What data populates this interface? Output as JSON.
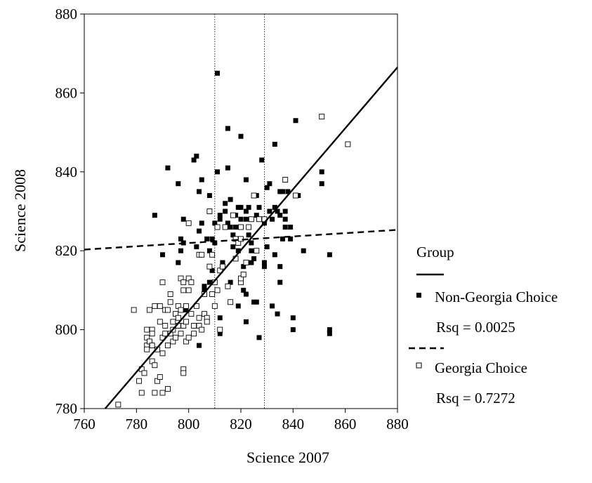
{
  "chart_data": {
    "type": "scatter",
    "xlabel": "Science 2007",
    "ylabel": "Science 2008",
    "xlim": [
      760,
      880
    ],
    "ylim": [
      780,
      880
    ],
    "x_ticks": [
      "760",
      "780",
      "800",
      "820",
      "840",
      "860",
      "880"
    ],
    "y_ticks": [
      "780",
      "800",
      "820",
      "840",
      "860",
      "880"
    ],
    "grid": false,
    "legend_title": "Group",
    "legend_placement": "right",
    "reference_lines_x": [
      810,
      829
    ],
    "series": [
      {
        "name": "Non-Georgia Choice",
        "marker": "filled-square",
        "color": "#000000",
        "stat": "Rsq = 0.0025",
        "fit_line": {
          "style": "dashed",
          "x": [
            760,
            880
          ],
          "y": [
            820.3,
            825.3
          ]
        },
        "points": [
          [
            787,
            829
          ],
          [
            790,
            812
          ],
          [
            790,
            819
          ],
          [
            792,
            841
          ],
          [
            796,
            837
          ],
          [
            796,
            817
          ],
          [
            797,
            823
          ],
          [
            798,
            828
          ],
          [
            798,
            822
          ],
          [
            797,
            820
          ],
          [
            802,
            843
          ],
          [
            803,
            844
          ],
          [
            803,
            821
          ],
          [
            804,
            835
          ],
          [
            805,
            838
          ],
          [
            805,
            827
          ],
          [
            804,
            825
          ],
          [
            806,
            811
          ],
          [
            806,
            810
          ],
          [
            807,
            823
          ],
          [
            808,
            834
          ],
          [
            808,
            820
          ],
          [
            809,
            815
          ],
          [
            809,
            823
          ],
          [
            810,
            827
          ],
          [
            810,
            822
          ],
          [
            811,
            865
          ],
          [
            811,
            840
          ],
          [
            812,
            829
          ],
          [
            812,
            828
          ],
          [
            813,
            817
          ],
          [
            814,
            832
          ],
          [
            814,
            830
          ],
          [
            815,
            827
          ],
          [
            815,
            841
          ],
          [
            815,
            851
          ],
          [
            816,
            826
          ],
          [
            816,
            833
          ],
          [
            817,
            824
          ],
          [
            817,
            821
          ],
          [
            818,
            829
          ],
          [
            818,
            826
          ],
          [
            819,
            831
          ],
          [
            819,
            820
          ],
          [
            819,
            806
          ],
          [
            820,
            849
          ],
          [
            820,
            828
          ],
          [
            820,
            831
          ],
          [
            821,
            816
          ],
          [
            821,
            810
          ],
          [
            822,
            838
          ],
          [
            822,
            830
          ],
          [
            822,
            828
          ],
          [
            822,
            802
          ],
          [
            823,
            824
          ],
          [
            823,
            831
          ],
          [
            824,
            822
          ],
          [
            824,
            817
          ],
          [
            825,
            807
          ],
          [
            825,
            818
          ],
          [
            826,
            829
          ],
          [
            826,
            834
          ],
          [
            826,
            807
          ],
          [
            827,
            798
          ],
          [
            827,
            831
          ],
          [
            828,
            843
          ],
          [
            829,
            827
          ],
          [
            829,
            817
          ],
          [
            829,
            816
          ],
          [
            830,
            836
          ],
          [
            830,
            821
          ],
          [
            831,
            837
          ],
          [
            831,
            830
          ],
          [
            832,
            828
          ],
          [
            832,
            806
          ],
          [
            833,
            831
          ],
          [
            833,
            819
          ],
          [
            833,
            847
          ],
          [
            834,
            830
          ],
          [
            834,
            804
          ],
          [
            835,
            829
          ],
          [
            835,
            835
          ],
          [
            835,
            816
          ],
          [
            835,
            812
          ],
          [
            836,
            823
          ],
          [
            836,
            835
          ],
          [
            837,
            828
          ],
          [
            837,
            826
          ],
          [
            837,
            830
          ],
          [
            838,
            835
          ],
          [
            839,
            826
          ],
          [
            839,
            823
          ],
          [
            840,
            803
          ],
          [
            840,
            800
          ],
          [
            841,
            834
          ],
          [
            841,
            853
          ],
          [
            842,
            834
          ],
          [
            844,
            820
          ],
          [
            851,
            840
          ],
          [
            851,
            837
          ],
          [
            854,
            819
          ],
          [
            854,
            800
          ],
          [
            854,
            799
          ],
          [
            812,
            803
          ],
          [
            822,
            809
          ],
          [
            799,
            805
          ],
          [
            808,
            812
          ],
          [
            816,
            812
          ],
          [
            812,
            799
          ],
          [
            824,
            820
          ],
          [
            818,
            818
          ],
          [
            804,
            796
          ]
        ]
      },
      {
        "name": "Georgia Choice",
        "marker": "open-square",
        "color": "#000000",
        "stat": "Rsq = 0.7272",
        "fit_line": {
          "style": "solid",
          "x": [
            768,
            880
          ],
          "y": [
            780,
            866.5
          ]
        },
        "points": [
          [
            773,
            781
          ],
          [
            779,
            805
          ],
          [
            781,
            787
          ],
          [
            782,
            784
          ],
          [
            782,
            790
          ],
          [
            783,
            789
          ],
          [
            784,
            800
          ],
          [
            784,
            798
          ],
          [
            784,
            796
          ],
          [
            785,
            797
          ],
          [
            785,
            805
          ],
          [
            786,
            792
          ],
          [
            786,
            800
          ],
          [
            786,
            799
          ],
          [
            787,
            806
          ],
          [
            787,
            791
          ],
          [
            787,
            784
          ],
          [
            788,
            787
          ],
          [
            788,
            795
          ],
          [
            789,
            806
          ],
          [
            789,
            802
          ],
          [
            789,
            788
          ],
          [
            790,
            784
          ],
          [
            790,
            812
          ],
          [
            790,
            798
          ],
          [
            790,
            794
          ],
          [
            791,
            801
          ],
          [
            791,
            799
          ],
          [
            791,
            805
          ],
          [
            792,
            805
          ],
          [
            792,
            796
          ],
          [
            793,
            807
          ],
          [
            793,
            809
          ],
          [
            793,
            799
          ],
          [
            794,
            800
          ],
          [
            794,
            797
          ],
          [
            794,
            802
          ],
          [
            795,
            798
          ],
          [
            795,
            804
          ],
          [
            796,
            806
          ],
          [
            796,
            803
          ],
          [
            796,
            801
          ],
          [
            797,
            805
          ],
          [
            797,
            813
          ],
          [
            797,
            799
          ],
          [
            798,
            812
          ],
          [
            798,
            810
          ],
          [
            798,
            801
          ],
          [
            798,
            790
          ],
          [
            798,
            789
          ],
          [
            799,
            806
          ],
          [
            799,
            802
          ],
          [
            799,
            797
          ],
          [
            800,
            813
          ],
          [
            800,
            810
          ],
          [
            800,
            827
          ],
          [
            800,
            798
          ],
          [
            801,
            812
          ],
          [
            801,
            804
          ],
          [
            802,
            801
          ],
          [
            802,
            799
          ],
          [
            803,
            806
          ],
          [
            804,
            819
          ],
          [
            804,
            803
          ],
          [
            804,
            801
          ],
          [
            805,
            800
          ],
          [
            805,
            819
          ],
          [
            806,
            804
          ],
          [
            806,
            809
          ],
          [
            807,
            803
          ],
          [
            807,
            802
          ],
          [
            808,
            830
          ],
          [
            808,
            816
          ],
          [
            809,
            819
          ],
          [
            809,
            809
          ],
          [
            810,
            812
          ],
          [
            810,
            806
          ],
          [
            811,
            826
          ],
          [
            811,
            810
          ],
          [
            812,
            815
          ],
          [
            812,
            800
          ],
          [
            813,
            816
          ],
          [
            814,
            826
          ],
          [
            815,
            811
          ],
          [
            816,
            807
          ],
          [
            817,
            829
          ],
          [
            818,
            823
          ],
          [
            818,
            818
          ],
          [
            819,
            822
          ],
          [
            820,
            823
          ],
          [
            820,
            826
          ],
          [
            820,
            812
          ],
          [
            820,
            813
          ],
          [
            821,
            814
          ],
          [
            822,
            817
          ],
          [
            823,
            826
          ],
          [
            824,
            828
          ],
          [
            825,
            834
          ],
          [
            826,
            820
          ],
          [
            827,
            828
          ],
          [
            829,
            828
          ],
          [
            837,
            838
          ],
          [
            841,
            834
          ],
          [
            851,
            854
          ],
          [
            861,
            847
          ],
          [
            786,
            796
          ],
          [
            792,
            785
          ],
          [
            784,
            795
          ]
        ]
      }
    ]
  }
}
